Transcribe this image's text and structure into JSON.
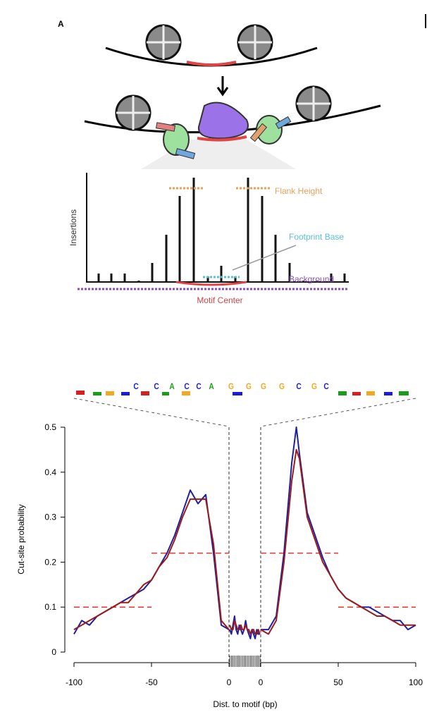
{
  "diagram": {
    "panel_label": "A",
    "y_label": "Insertions",
    "labels": {
      "flank_height": "Flank Height",
      "footprint_base": "Footprint Base",
      "background": "Background",
      "motif_center": "Motif Center"
    }
  },
  "logo": {
    "letters": [
      "C",
      "C",
      "A",
      "C",
      "C",
      "A",
      "G",
      "G",
      "G",
      "G",
      "C",
      "G",
      "C"
    ],
    "colors": {
      "A": "#1a9c1a",
      "C": "#1c1cd6",
      "G": "#f5a623",
      "T": "#d42020"
    }
  },
  "chart_data": {
    "type": "line",
    "y_label": "Cut-site probability",
    "x_label": "Dist. to motif (bp)",
    "ylim": [
      0,
      0.5
    ],
    "yticks": [
      0,
      0.1,
      0.2,
      0.3,
      0.4,
      0.5
    ],
    "guide_color": "#e8332a",
    "panels": [
      {
        "xlim": [
          -100,
          0
        ],
        "xticks": [
          -100,
          -50,
          0
        ],
        "x": [
          -100,
          -95,
          -90,
          -85,
          -80,
          -75,
          -70,
          -65,
          -60,
          -55,
          -50,
          -45,
          -40,
          -35,
          -30,
          -25,
          -20,
          -15,
          -10,
          -5,
          0
        ],
        "series": [
          {
            "color": "#1f1fa0",
            "values": [
              0.04,
              0.07,
              0.06,
              0.08,
              0.09,
              0.1,
              0.11,
              0.12,
              0.13,
              0.14,
              0.16,
              0.19,
              0.22,
              0.26,
              0.31,
              0.36,
              0.33,
              0.35,
              0.22,
              0.06,
              0.05
            ]
          },
          {
            "color": "#9b1b1b",
            "values": [
              0.05,
              0.06,
              0.07,
              0.08,
              0.09,
              0.1,
              0.11,
              0.11,
              0.13,
              0.15,
              0.16,
              0.19,
              0.21,
              0.25,
              0.3,
              0.34,
              0.34,
              0.34,
              0.24,
              0.07,
              0.05
            ]
          }
        ],
        "guides": [
          {
            "value": 0.1,
            "x": [
              -100,
              -50
            ]
          },
          {
            "value": 0.22,
            "x": [
              -50,
              0
            ]
          }
        ]
      },
      {
        "categories": [
          null,
          null,
          null,
          null,
          null,
          null,
          null,
          null,
          null,
          null,
          null,
          null,
          null,
          null,
          null,
          null,
          null,
          null,
          null,
          null
        ],
        "series": [
          {
            "color": "#1f1fa0",
            "values": [
              0.05,
              0.04,
              0.06,
              0.08,
              0.05,
              0.04,
              0.06,
              0.05,
              0.04,
              0.05,
              0.07,
              0.05,
              0.04,
              0.03,
              0.05,
              0.04,
              0.03,
              0.05,
              0.04,
              0.04
            ]
          },
          {
            "color": "#9b1b1b",
            "values": [
              0.06,
              0.05,
              0.05,
              0.07,
              0.06,
              0.05,
              0.05,
              0.06,
              0.05,
              0.05,
              0.06,
              0.05,
              0.05,
              0.04,
              0.05,
              0.05,
              0.04,
              0.04,
              0.05,
              0.04
            ]
          }
        ]
      },
      {
        "xlim": [
          0,
          100
        ],
        "xticks": [
          0,
          50,
          100
        ],
        "x": [
          0,
          5,
          10,
          15,
          20,
          23,
          25,
          30,
          35,
          40,
          45,
          50,
          55,
          60,
          65,
          70,
          75,
          80,
          85,
          90,
          95,
          100
        ],
        "series": [
          {
            "color": "#1f1fa0",
            "values": [
              0.05,
              0.05,
              0.08,
              0.22,
              0.42,
              0.5,
              0.44,
              0.31,
              0.26,
              0.21,
              0.17,
              0.14,
              0.12,
              0.11,
              0.1,
              0.1,
              0.09,
              0.08,
              0.07,
              0.07,
              0.05,
              0.06
            ]
          },
          {
            "color": "#9b1b1b",
            "values": [
              0.05,
              0.04,
              0.07,
              0.2,
              0.38,
              0.45,
              0.43,
              0.3,
              0.25,
              0.2,
              0.17,
              0.14,
              0.12,
              0.11,
              0.1,
              0.09,
              0.08,
              0.08,
              0.07,
              0.06,
              0.06,
              0.06
            ]
          }
        ],
        "guides": [
          {
            "value": 0.22,
            "x": [
              0,
              50
            ]
          },
          {
            "value": 0.1,
            "x": [
              50,
              100
            ]
          }
        ]
      }
    ]
  }
}
